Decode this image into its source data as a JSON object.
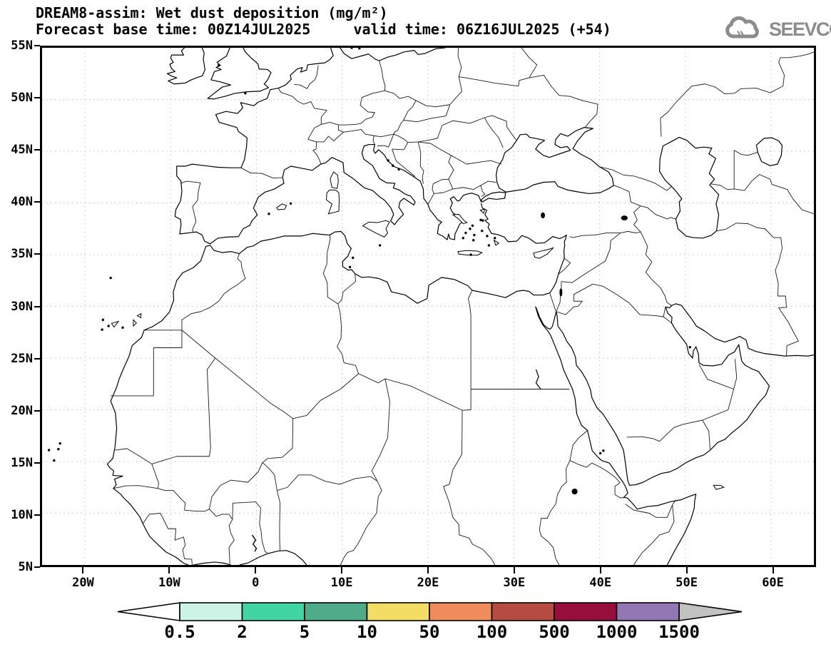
{
  "header": {
    "title_line1": "DREAM8-assim: Wet dust deposition (mg/m²)",
    "title_line2": "Forecast base time: 00Z14JUL2025     valid time: 06Z16JUL2025 (+54)"
  },
  "logo": {
    "text": "SEEVCCC",
    "color": "#8c8c8c"
  },
  "axes": {
    "lat_ticks": [
      {
        "value": 55,
        "label": "55N"
      },
      {
        "value": 50,
        "label": "50N"
      },
      {
        "value": 45,
        "label": "45N"
      },
      {
        "value": 40,
        "label": "40N"
      },
      {
        "value": 35,
        "label": "35N"
      },
      {
        "value": 30,
        "label": "30N"
      },
      {
        "value": 25,
        "label": "25N"
      },
      {
        "value": 20,
        "label": "20N"
      },
      {
        "value": 15,
        "label": "15N"
      },
      {
        "value": 10,
        "label": "10N"
      },
      {
        "value": 5,
        "label": "5N"
      }
    ],
    "lon_ticks": [
      {
        "value": -20,
        "label": "20W"
      },
      {
        "value": -10,
        "label": "10W"
      },
      {
        "value": 0,
        "label": "0"
      },
      {
        "value": 10,
        "label": "10E"
      },
      {
        "value": 20,
        "label": "20E"
      },
      {
        "value": 30,
        "label": "30E"
      },
      {
        "value": 40,
        "label": "40E"
      },
      {
        "value": 50,
        "label": "50E"
      },
      {
        "value": 60,
        "label": "60E"
      }
    ]
  },
  "colorbar": {
    "tick_labels": [
      "0.5",
      "2",
      "5",
      "10",
      "50",
      "100",
      "500",
      "1000",
      "1500"
    ],
    "segment_colors": [
      "#cdf3e7",
      "#41d5a4",
      "#50ab8b",
      "#f3dd64",
      "#f08c5c",
      "#b54b41",
      "#970d3b",
      "#9377b5"
    ],
    "left_arrow_color": "#ffffff",
    "right_arrow_color": "#c2c2c2",
    "outline_color": "#000000"
  },
  "chart_data": {
    "type": "heatmap",
    "subtype": "geographic-contour-map",
    "title": "DREAM8-assim: Wet dust deposition (mg/m²)",
    "forecast_base_time": "00Z14JUL2025",
    "valid_time": "06Z16JUL2025",
    "forecast_hour": "+54",
    "projection": "equirectangular",
    "lon_range": [
      -25,
      65
    ],
    "lat_range": [
      5,
      55
    ],
    "grid": "dotted, 10 deg lon x 5 deg lat",
    "legend_position": "bottom",
    "colorbar_levels": [
      0.5,
      2,
      5,
      10,
      50,
      100,
      500,
      1000,
      1500
    ],
    "colorbar_unit": "mg/m²",
    "field_values": "no shaded areas present: wet dust deposition below lowest contour level (0.5 mg/m²) over entire domain",
    "region": "North Africa, Europe, Middle East (coastlines and country borders only)"
  }
}
